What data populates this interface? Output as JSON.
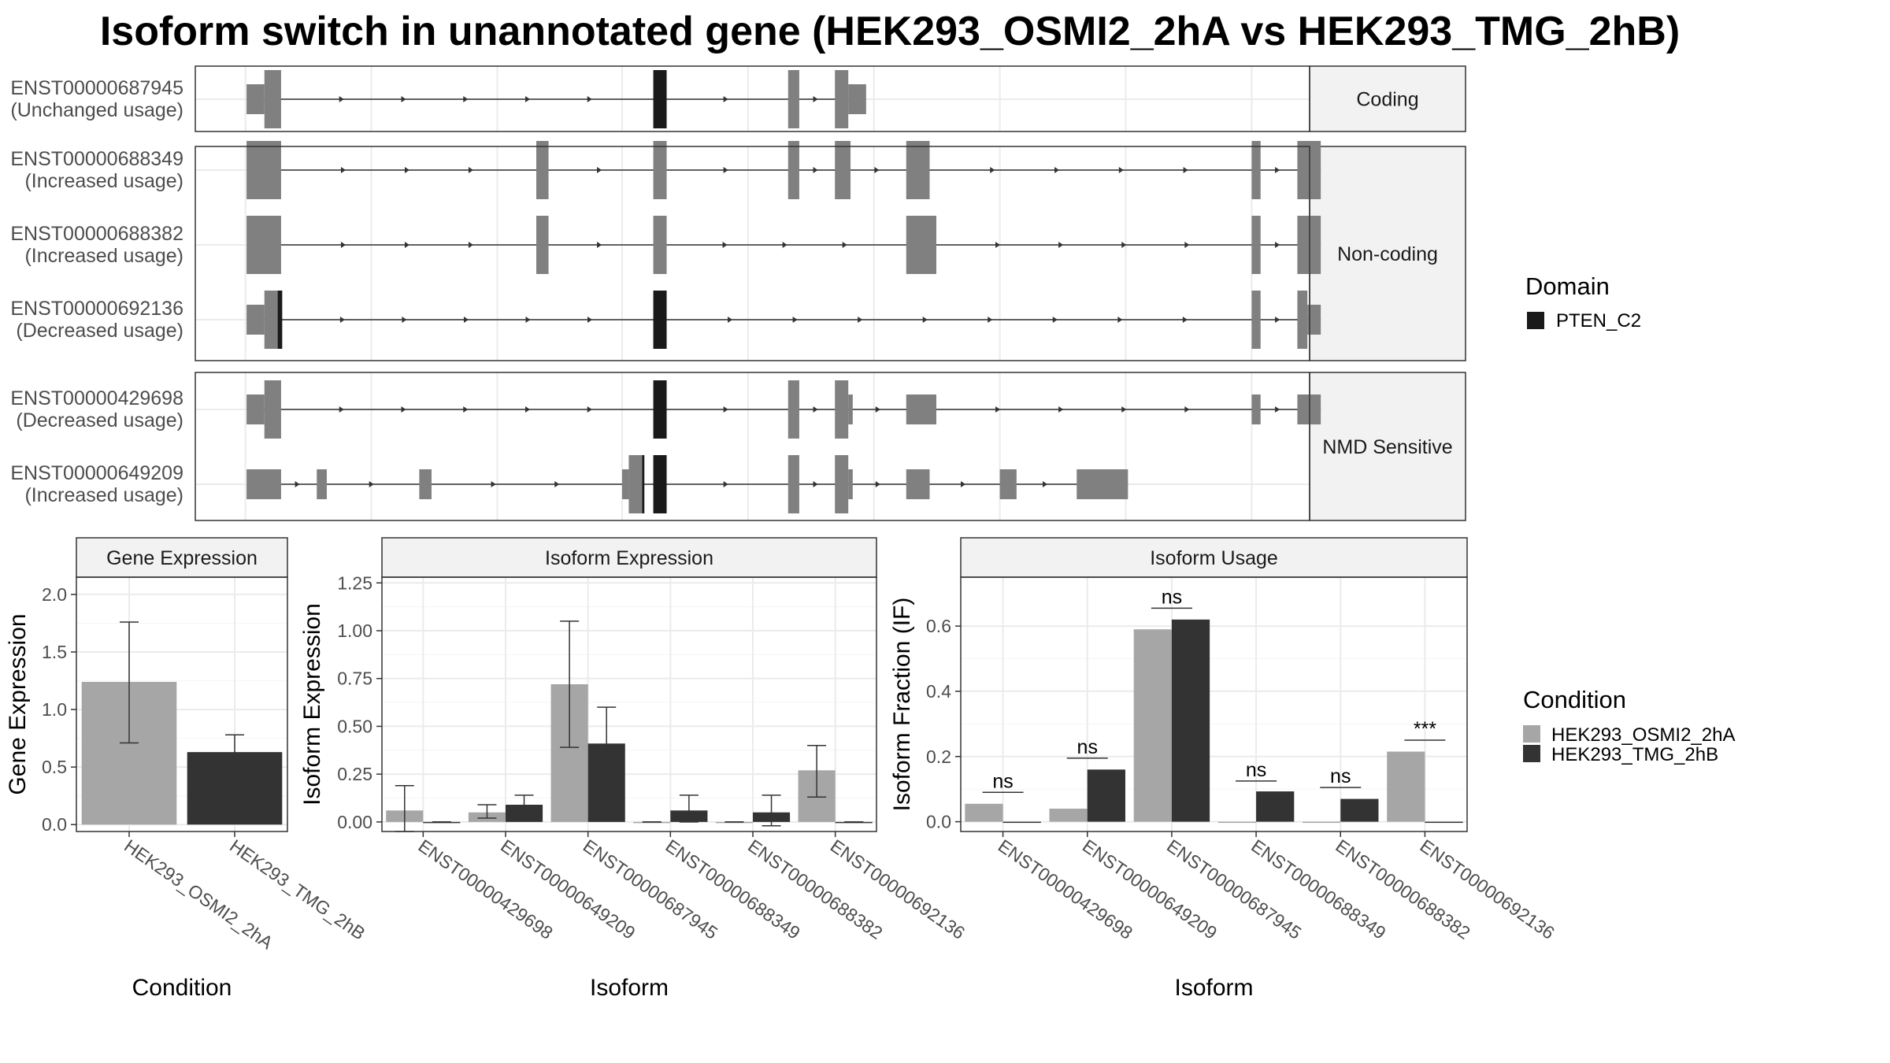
{
  "title": "Isoform switch in unannotated gene (HEK293_OSMI2_2hA vs HEK293_TMG_2hB)",
  "colors": {
    "exon": "#808080",
    "domain": "#1a1a1a",
    "condition_a": "#a6a6a6",
    "condition_b": "#333333",
    "grid": "#ebebeb",
    "strip": "#f2f2f2"
  },
  "transcript_panel": {
    "x_range": [
      0,
      100
    ],
    "gridlines": [
      4.5,
      15.8,
      27.1,
      38.3,
      49.6,
      60.9,
      72.2,
      83.5,
      94.8
    ],
    "groups": [
      {
        "label": "Coding",
        "transcripts": [
          {
            "id": "ENST00000687945",
            "usage": "(Unchanged usage)",
            "segments": [
              {
                "start": 4.6,
                "end": 6.2,
                "kind": "utr"
              },
              {
                "start": 6.2,
                "end": 7.7,
                "kind": "cds"
              },
              {
                "start": 41.1,
                "end": 42.3,
                "kind": "domain"
              },
              {
                "start": 53.2,
                "end": 54.2,
                "kind": "cds"
              },
              {
                "start": 57.4,
                "end": 58.6,
                "kind": "cds"
              },
              {
                "start": 58.6,
                "end": 60.2,
                "kind": "utr"
              }
            ]
          }
        ]
      },
      {
        "label": "Non-coding",
        "transcripts": [
          {
            "id": "ENST00000688349",
            "usage": "(Increased usage)",
            "segments": [
              {
                "start": 4.6,
                "end": 7.7,
                "kind": "cds"
              },
              {
                "start": 30.6,
                "end": 31.7,
                "kind": "cds"
              },
              {
                "start": 41.1,
                "end": 42.3,
                "kind": "cds"
              },
              {
                "start": 53.2,
                "end": 54.2,
                "kind": "cds"
              },
              {
                "start": 57.4,
                "end": 58.8,
                "kind": "cds"
              },
              {
                "start": 63.8,
                "end": 65.9,
                "kind": "cds"
              },
              {
                "start": 94.8,
                "end": 95.6,
                "kind": "cds"
              },
              {
                "start": 98.9,
                "end": 101.0,
                "kind": "cds"
              }
            ]
          },
          {
            "id": "ENST00000688382",
            "usage": "(Increased usage)",
            "segments": [
              {
                "start": 4.6,
                "end": 7.7,
                "kind": "cds"
              },
              {
                "start": 30.6,
                "end": 31.7,
                "kind": "cds"
              },
              {
                "start": 41.1,
                "end": 42.3,
                "kind": "cds"
              },
              {
                "start": 63.8,
                "end": 66.5,
                "kind": "cds"
              },
              {
                "start": 94.8,
                "end": 95.6,
                "kind": "cds"
              },
              {
                "start": 98.9,
                "end": 101.0,
                "kind": "cds"
              }
            ]
          },
          {
            "id": "ENST00000692136",
            "usage": "(Decreased usage)",
            "segments": [
              {
                "start": 4.6,
                "end": 6.2,
                "kind": "utr"
              },
              {
                "start": 6.2,
                "end": 7.7,
                "kind": "cds"
              },
              {
                "start": 7.4,
                "end": 7.8,
                "kind": "domain"
              },
              {
                "start": 41.1,
                "end": 42.3,
                "kind": "domain"
              },
              {
                "start": 94.8,
                "end": 95.6,
                "kind": "cds"
              },
              {
                "start": 98.9,
                "end": 99.8,
                "kind": "cds"
              },
              {
                "start": 99.8,
                "end": 101.0,
                "kind": "utr"
              }
            ]
          }
        ]
      },
      {
        "label": "NMD Sensitive",
        "transcripts": [
          {
            "id": "ENST00000429698",
            "usage": "(Decreased usage)",
            "segments": [
              {
                "start": 4.6,
                "end": 6.2,
                "kind": "utr"
              },
              {
                "start": 6.2,
                "end": 7.7,
                "kind": "cds"
              },
              {
                "start": 41.1,
                "end": 42.3,
                "kind": "domain"
              },
              {
                "start": 53.2,
                "end": 54.2,
                "kind": "cds"
              },
              {
                "start": 57.4,
                "end": 58.6,
                "kind": "cds"
              },
              {
                "start": 58.6,
                "end": 59.0,
                "kind": "utr"
              },
              {
                "start": 63.8,
                "end": 66.5,
                "kind": "utr"
              },
              {
                "start": 94.8,
                "end": 95.6,
                "kind": "utr"
              },
              {
                "start": 98.9,
                "end": 101.0,
                "kind": "utr"
              }
            ]
          },
          {
            "id": "ENST00000649209",
            "usage": "(Increased usage)",
            "segments": [
              {
                "start": 4.6,
                "end": 7.7,
                "kind": "utr"
              },
              {
                "start": 10.9,
                "end": 11.8,
                "kind": "utr"
              },
              {
                "start": 20.1,
                "end": 21.2,
                "kind": "utr"
              },
              {
                "start": 38.3,
                "end": 38.9,
                "kind": "utr"
              },
              {
                "start": 38.9,
                "end": 40.1,
                "kind": "cds"
              },
              {
                "start": 40.1,
                "end": 40.3,
                "kind": "domain"
              },
              {
                "start": 41.1,
                "end": 42.3,
                "kind": "domain"
              },
              {
                "start": 53.2,
                "end": 54.2,
                "kind": "cds"
              },
              {
                "start": 57.4,
                "end": 58.6,
                "kind": "cds"
              },
              {
                "start": 58.6,
                "end": 59.0,
                "kind": "utr"
              },
              {
                "start": 63.8,
                "end": 65.9,
                "kind": "utr"
              },
              {
                "start": 72.2,
                "end": 73.7,
                "kind": "utr"
              },
              {
                "start": 79.1,
                "end": 83.7,
                "kind": "utr"
              }
            ]
          }
        ]
      }
    ]
  },
  "legends": {
    "domain": {
      "title": "Domain",
      "items": [
        {
          "label": "PTEN_C2",
          "color": "#1a1a1a"
        }
      ]
    },
    "condition": {
      "title": "Condition",
      "items": [
        {
          "label": "HEK293_OSMI2_2hA",
          "color": "#a6a6a6"
        },
        {
          "label": "HEK293_TMG_2hB",
          "color": "#333333"
        }
      ]
    }
  },
  "chart_data": [
    {
      "type": "bar",
      "title": "Gene Expression",
      "xlabel": "Condition",
      "ylabel": "Gene Expression",
      "ylim": [
        -0.06,
        2.15
      ],
      "yticks": [
        0.0,
        0.5,
        1.0,
        1.5,
        2.0
      ],
      "yticklabels": [
        "0.0",
        "0.5",
        "1.0",
        "1.5",
        "2.0"
      ],
      "categories": [
        "HEK293_OSMI2_2hA",
        "HEK293_TMG_2hB"
      ],
      "series": [
        {
          "color": "#a6a6a6",
          "values": [
            1.24,
            0.63
          ],
          "err_low": [
            0.71,
            0.48
          ],
          "err_high": [
            1.76,
            0.78
          ]
        }
      ],
      "bar_colors": [
        "#a6a6a6",
        "#333333"
      ]
    },
    {
      "type": "bar",
      "title": "Isoform Expression",
      "xlabel": "Isoform",
      "ylabel": "Isoform Expression",
      "ylim": [
        -0.05,
        1.28
      ],
      "yticks": [
        0.0,
        0.25,
        0.5,
        0.75,
        1.0,
        1.25
      ],
      "yticklabels": [
        "0.00",
        "0.25",
        "0.50",
        "0.75",
        "1.00",
        "1.25"
      ],
      "categories": [
        "ENST00000429698",
        "ENST00000649209",
        "ENST00000687945",
        "ENST00000688349",
        "ENST00000688382",
        "ENST00000692136"
      ],
      "series": [
        {
          "name": "HEK293_OSMI2_2hA",
          "color": "#a6a6a6",
          "values": [
            0.06,
            0.05,
            0.72,
            0.0,
            0.0,
            0.27
          ],
          "err_low": [
            -0.05,
            0.02,
            0.39,
            0.0,
            0.0,
            0.13
          ],
          "err_high": [
            0.19,
            0.09,
            1.05,
            0.0,
            0.0,
            0.4
          ]
        },
        {
          "name": "HEK293_TMG_2hB",
          "color": "#333333",
          "values": [
            0.0,
            0.09,
            0.41,
            0.06,
            0.05,
            0.0
          ],
          "err_low": [
            0.0,
            0.05,
            0.22,
            0.0,
            -0.02,
            0.0
          ],
          "err_high": [
            0.0,
            0.14,
            0.6,
            0.14,
            0.14,
            0.0
          ]
        }
      ]
    },
    {
      "type": "bar",
      "title": "Isoform Usage",
      "xlabel": "Isoform",
      "ylabel": "Isoform Fraction (IF)",
      "ylim": [
        -0.03,
        0.75
      ],
      "yticks": [
        0.0,
        0.2,
        0.4,
        0.6
      ],
      "yticklabels": [
        "0.0",
        "0.2",
        "0.4",
        "0.6"
      ],
      "categories": [
        "ENST00000429698",
        "ENST00000649209",
        "ENST00000687945",
        "ENST00000688349",
        "ENST00000688382",
        "ENST00000692136"
      ],
      "series": [
        {
          "name": "HEK293_OSMI2_2hA",
          "color": "#a6a6a6",
          "values": [
            0.055,
            0.04,
            0.59,
            0.0,
            0.0,
            0.215
          ]
        },
        {
          "name": "HEK293_TMG_2hB",
          "color": "#333333",
          "values": [
            0.0,
            0.16,
            0.62,
            0.093,
            0.07,
            0.0
          ]
        }
      ],
      "significance": [
        {
          "label": "ns",
          "y": 0.09
        },
        {
          "label": "ns",
          "y": 0.195
        },
        {
          "label": "ns",
          "y": 0.655
        },
        {
          "label": "ns",
          "y": 0.125
        },
        {
          "label": "ns",
          "y": 0.105
        },
        {
          "label": "***",
          "y": 0.25
        }
      ]
    }
  ]
}
